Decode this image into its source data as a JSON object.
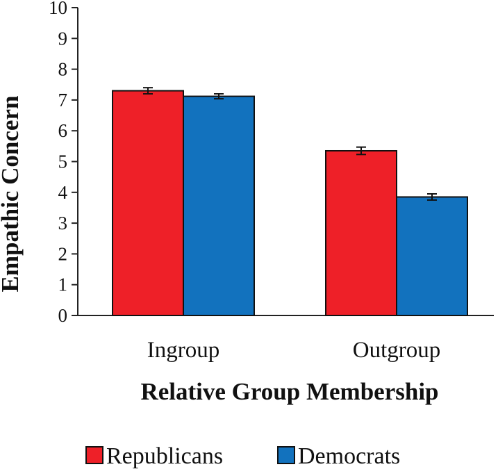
{
  "chart_data": {
    "type": "bar",
    "title": "",
    "xlabel": "Relative Group Membership",
    "ylabel": "Empathic Concern",
    "ylim": [
      0,
      10
    ],
    "yticks": [
      0,
      1,
      2,
      3,
      4,
      5,
      6,
      7,
      8,
      9,
      10
    ],
    "grid": false,
    "legend_position": "bottom",
    "categories": [
      "Ingroup",
      "Outgroup"
    ],
    "series": [
      {
        "name": "Republicans",
        "color": "#ee2028",
        "values": [
          7.3,
          5.35
        ],
        "error": [
          0.1,
          0.12
        ]
      },
      {
        "name": "Democrats",
        "color": "#1272be",
        "values": [
          7.12,
          3.85
        ],
        "error": [
          0.08,
          0.1
        ]
      }
    ]
  }
}
